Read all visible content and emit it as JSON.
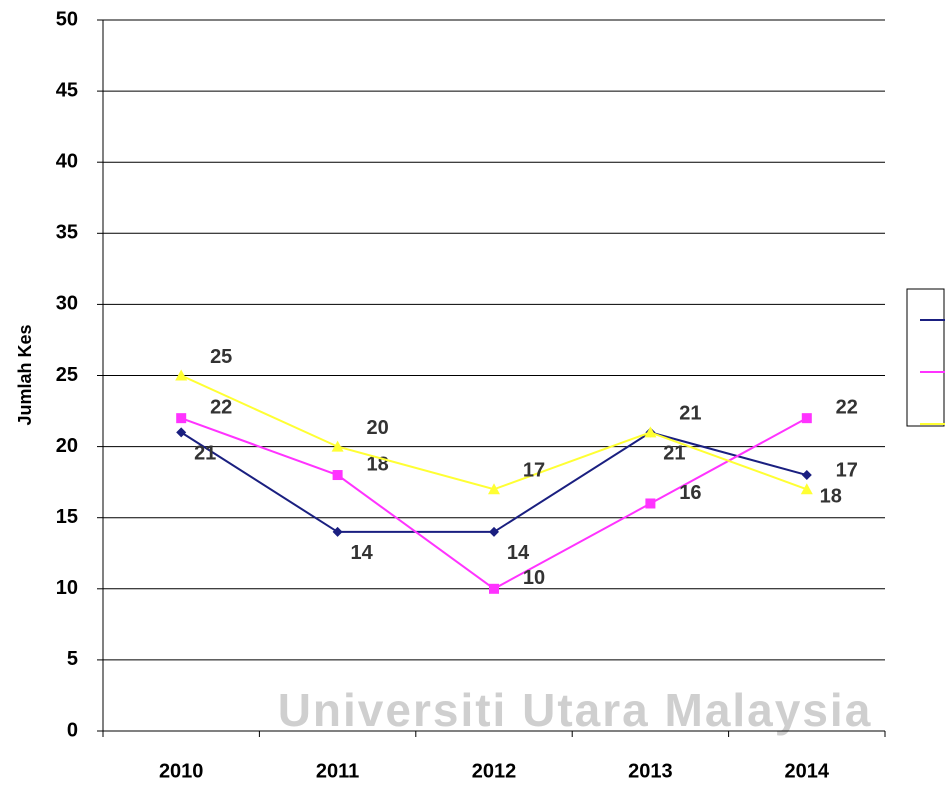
{
  "chart_data": {
    "type": "line",
    "y_label": "Jumlah Kes",
    "watermark": "Universiti Utara Malaysia",
    "categories": [
      "2010",
      "2011",
      "2012",
      "2013",
      "2014"
    ],
    "series": [
      {
        "color": "#1a1f80",
        "marker": "diamond",
        "values": [
          21,
          14,
          14,
          21,
          18
        ]
      },
      {
        "color": "#ff33ff",
        "marker": "square",
        "values": [
          22,
          18,
          10,
          16,
          22
        ]
      },
      {
        "color": "#ffff33",
        "marker": "triangle",
        "values": [
          25,
          20,
          17,
          21,
          17
        ]
      }
    ],
    "ylim": [
      0,
      50
    ],
    "yticks": [
      0,
      5,
      10,
      15,
      20,
      25,
      30,
      35,
      40,
      45,
      50
    ],
    "grid": true,
    "legend": "right"
  }
}
